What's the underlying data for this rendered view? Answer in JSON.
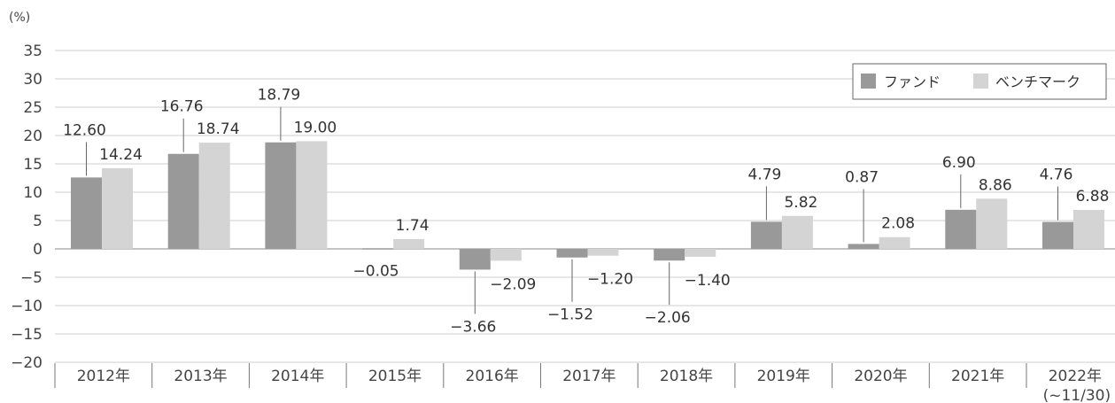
{
  "chart_data": {
    "type": "bar",
    "y_unit": "(%)",
    "categories": [
      "2012年",
      "2013年",
      "2014年",
      "2015年",
      "2016年",
      "2017年",
      "2018年",
      "2019年",
      "2020年",
      "2021年",
      "2022年"
    ],
    "category_notes": [
      "",
      "",
      "",
      "",
      "",
      "",
      "",
      "",
      "",
      "",
      "(~11/30)"
    ],
    "series": [
      {
        "name": "ファンド",
        "color": "#999999",
        "values": [
          12.6,
          16.76,
          18.79,
          -0.05,
          -3.66,
          -1.52,
          -2.06,
          4.79,
          0.87,
          6.9,
          4.76
        ],
        "labels": [
          "12.60",
          "16.76",
          "18.79",
          "−0.05",
          "−3.66",
          "−1.52",
          "−2.06",
          "4.79",
          "0.87",
          "6.90",
          "4.76"
        ]
      },
      {
        "name": "ベンチマーク",
        "color": "#d4d4d4",
        "values": [
          14.24,
          18.74,
          19.0,
          1.74,
          -2.09,
          -1.2,
          -1.4,
          5.82,
          2.08,
          8.86,
          6.88
        ],
        "labels": [
          "14.24",
          "18.74",
          "19.00",
          "1.74",
          "−2.09",
          "−1.20",
          "−1.40",
          "5.82",
          "2.08",
          "8.86",
          "6.88"
        ]
      }
    ],
    "ylim": [
      -20,
      35
    ],
    "yticks": [
      35,
      30,
      25,
      20,
      15,
      10,
      5,
      0,
      -5,
      -10,
      -15,
      -20
    ],
    "ytick_labels": [
      "35",
      "30",
      "25",
      "20",
      "15",
      "10",
      "5",
      "0",
      "−5",
      "−10",
      "−15",
      "−20"
    ],
    "grid": true,
    "legend_position": "top-right"
  }
}
